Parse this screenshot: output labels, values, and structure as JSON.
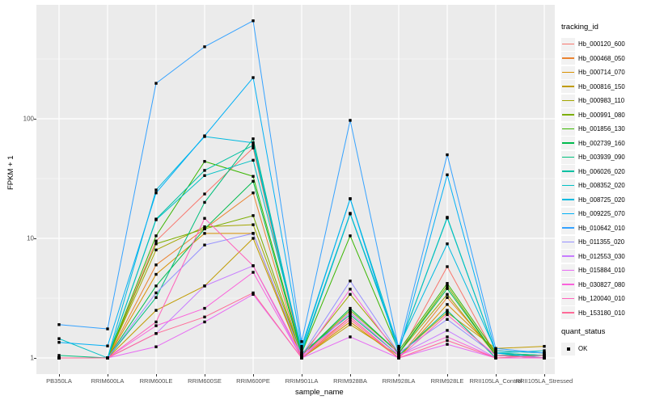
{
  "figure": {
    "background": "#FFFFFF",
    "panel_background": "#EBEBEB",
    "gridline_color": "#FFFFFF",
    "axis_text_color": "#4D4D4D",
    "point_color": "#000000",
    "legend_key_background": "#F2F2F2"
  },
  "axes": {
    "x_title": "sample_name",
    "y_title": "FPKM + 1",
    "y_tick_labels": [
      "1",
      "10",
      "100"
    ]
  },
  "legend": {
    "tracking_title": "tracking_id",
    "quant_title": "quant_status",
    "quant_value": "OK"
  },
  "chart_data": {
    "type": "line",
    "title": "",
    "xlabel": "sample_name",
    "ylabel": "FPKM + 1",
    "y_scale": "log10",
    "ylim": [
      0.75,
      900
    ],
    "y_major_ticks": [
      1,
      10,
      100
    ],
    "y_minor_ticks": [
      3.162,
      31.62,
      316.2
    ],
    "grid": true,
    "legend_position": "right",
    "point_marker": "black-filled-square (quant_status = OK)",
    "categories": [
      "PB350LA",
      "RRIM600LA",
      "RRIM600LE",
      "RRIM600SE",
      "RRIM600PE",
      "RRIM901LA",
      "RRIM928BA",
      "RRIM928LA",
      "RRIM928LE",
      "RRII105LA_Control",
      "RRII105LA_Stressed"
    ],
    "series": [
      {
        "name": "Hb_000120_600",
        "color": "#F8766D",
        "values": [
          1.0,
          1.0,
          9.5,
          23.5,
          57,
          1.05,
          2.4,
          1.05,
          5.8,
          1.05,
          1.0
        ]
      },
      {
        "name": "Hb_000468_050",
        "color": "#EA8331",
        "values": [
          1.0,
          1.0,
          6.0,
          12.0,
          24.0,
          1.0,
          2.2,
          1.0,
          3.2,
          1.1,
          1.0
        ]
      },
      {
        "name": "Hb_000714_070",
        "color": "#D89000",
        "values": [
          1.0,
          1.0,
          5.0,
          11.0,
          11.0,
          1.0,
          2.0,
          1.0,
          2.8,
          1.15,
          1.1
        ]
      },
      {
        "name": "Hb_000816_150",
        "color": "#C09B00",
        "values": [
          1.0,
          1.0,
          2.5,
          4.0,
          10.0,
          1.0,
          1.9,
          1.05,
          2.4,
          1.2,
          1.25
        ]
      },
      {
        "name": "Hb_000983_110",
        "color": "#A3A500",
        "values": [
          1.0,
          1.0,
          8.0,
          12.5,
          13.0,
          1.05,
          3.4,
          1.1,
          3.4,
          1.05,
          1.0
        ]
      },
      {
        "name": "Hb_000991_080",
        "color": "#7CAE00",
        "values": [
          1.0,
          1.0,
          9.0,
          12.0,
          15.5,
          1.05,
          2.5,
          1.1,
          4.0,
          1.05,
          1.05
        ]
      },
      {
        "name": "Hb_001856_130",
        "color": "#39B600",
        "values": [
          1.0,
          1.0,
          10.5,
          44.0,
          33.0,
          1.1,
          10.5,
          1.15,
          4.2,
          1.1,
          1.05
        ]
      },
      {
        "name": "Hb_002739_160",
        "color": "#00BB4E",
        "values": [
          1.0,
          1.0,
          4.0,
          12.0,
          30.0,
          1.05,
          2.6,
          1.1,
          3.8,
          1.05,
          1.05
        ]
      },
      {
        "name": "Hb_003939_090",
        "color": "#00BF7D",
        "values": [
          1.05,
          1.0,
          3.2,
          20.0,
          68.0,
          1.1,
          2.3,
          1.05,
          2.5,
          1.0,
          1.0
        ]
      },
      {
        "name": "Hb_006026_020",
        "color": "#00C1A3",
        "values": [
          1.0,
          1.0,
          14.5,
          37.0,
          60.0,
          1.1,
          16.0,
          1.2,
          15.0,
          1.1,
          1.05
        ]
      },
      {
        "name": "Hb_008352_020",
        "color": "#00C0C4",
        "values": [
          1.45,
          1.0,
          14.3,
          33.5,
          45.0,
          1.2,
          21.5,
          1.2,
          14.8,
          1.1,
          1.15
        ]
      },
      {
        "name": "Hb_008725_020",
        "color": "#00BAE0",
        "values": [
          1.0,
          1.0,
          25.4,
          71.0,
          63.0,
          1.15,
          16.2,
          1.25,
          9.0,
          1.15,
          1.1
        ]
      },
      {
        "name": "Hb_009225_070",
        "color": "#00B0F6",
        "values": [
          1.35,
          1.26,
          24.0,
          72.0,
          221.0,
          1.25,
          21.4,
          1.1,
          34.0,
          1.1,
          1.0
        ]
      },
      {
        "name": "Hb_010642_010",
        "color": "#35A2FF",
        "values": [
          1.9,
          1.75,
          198.0,
          400.0,
          660.0,
          1.37,
          97.0,
          1.2,
          50.0,
          1.2,
          1.1
        ]
      },
      {
        "name": "Hb_011355_020",
        "color": "#9590FF",
        "values": [
          1.0,
          1.0,
          3.5,
          8.8,
          11.0,
          1.05,
          4.4,
          1.1,
          2.1,
          1.05,
          1.0
        ]
      },
      {
        "name": "Hb_012553_030",
        "color": "#C77CFF",
        "values": [
          1.0,
          1.0,
          1.6,
          4.0,
          5.9,
          1.0,
          2.4,
          1.05,
          1.7,
          1.0,
          1.0
        ]
      },
      {
        "name": "Hb_015884_010",
        "color": "#E76BF3",
        "values": [
          1.0,
          1.0,
          1.24,
          2.0,
          3.4,
          1.0,
          1.5,
          1.0,
          1.3,
          1.0,
          1.0
        ]
      },
      {
        "name": "Hb_030827_080",
        "color": "#FA62DB",
        "values": [
          1.0,
          1.0,
          1.86,
          2.6,
          5.2,
          1.0,
          3.76,
          1.05,
          1.5,
          1.0,
          1.0
        ]
      },
      {
        "name": "Hb_120040_010",
        "color": "#FF62BC",
        "values": [
          1.0,
          1.0,
          2.0,
          14.7,
          5.9,
          1.05,
          2.2,
          1.0,
          2.3,
          1.05,
          1.0
        ]
      },
      {
        "name": "Hb_153180_010",
        "color": "#FF6A98",
        "values": [
          1.0,
          1.0,
          1.6,
          2.2,
          3.5,
          1.0,
          2.1,
          1.0,
          1.4,
          1.0,
          1.05
        ]
      }
    ]
  }
}
